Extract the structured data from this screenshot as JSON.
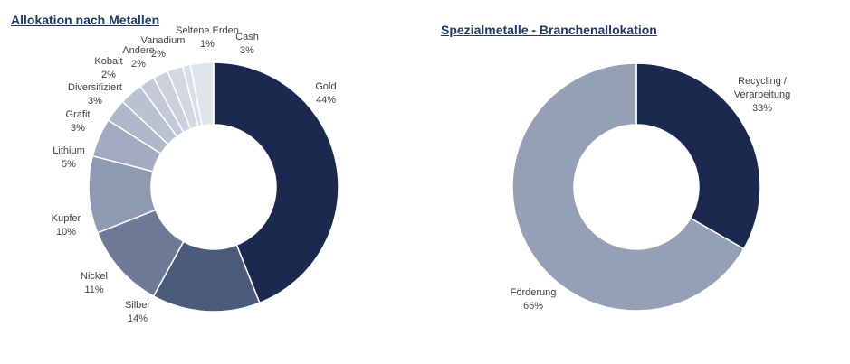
{
  "chart_data": [
    {
      "type": "pie",
      "donut": true,
      "title": "Allokation nach Metallen",
      "start": "top, clockwise",
      "categories": [
        "Gold",
        "Silber",
        "Nickel",
        "Kupfer",
        "Lithium",
        "Grafit",
        "Diversifiziert",
        "Kobalt",
        "Andere",
        "Vanadium",
        "Seltene Erden",
        "Cash"
      ],
      "values": [
        44,
        14,
        11,
        10,
        5,
        3,
        3,
        2,
        2,
        2,
        1,
        3
      ],
      "labels": [
        "44%",
        "14%",
        "11%",
        "10%",
        "5%",
        "3%",
        "3%",
        "2%",
        "2%",
        "2%",
        "1%",
        "3%"
      ],
      "colors": [
        "#1b2850",
        "#4b5a7a",
        "#6c7a96",
        "#8f9ab2",
        "#a1aabe",
        "#afb7c8",
        "#bac1d0",
        "#c3c9d6",
        "#cbd0dc",
        "#d2d7e1",
        "#d9dde6",
        "#e1e4eb"
      ]
    },
    {
      "type": "pie",
      "donut": true,
      "title": "Spezialmetalle - Branchenallokation",
      "start": "top, clockwise",
      "categories": [
        "Recycling / Verarbeitung",
        "Förderung"
      ],
      "category_lines": [
        [
          "Recycling /",
          "Verarbeitung"
        ],
        [
          "Förderung"
        ]
      ],
      "values": [
        33,
        66
      ],
      "labels": [
        "33%",
        "66%"
      ],
      "colors": [
        "#1b2850",
        "#959fb5"
      ]
    }
  ]
}
